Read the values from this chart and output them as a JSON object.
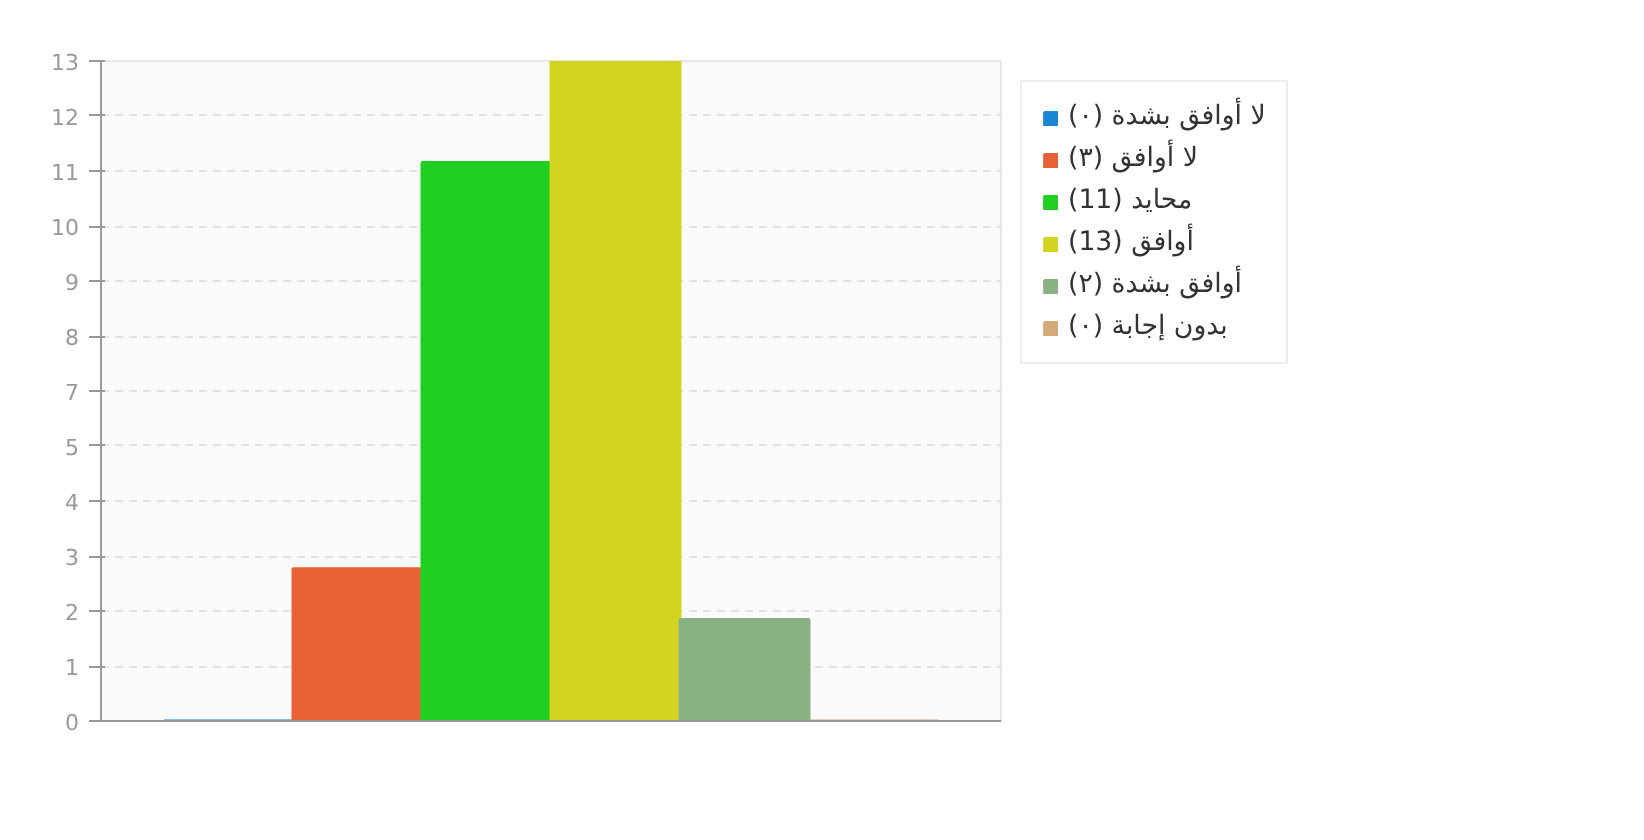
{
  "chart_data": {
    "type": "bar",
    "categories": [
      null
    ],
    "series": [
      {
        "name": "لا أوافق بشدة (٠)",
        "color": "#1a86d6",
        "values": [
          0
        ]
      },
      {
        "name": "لا أوافق (٣)",
        "color": "#e86035",
        "values": [
          3
        ]
      },
      {
        "name": "محايد (11)",
        "color": "#20cf22",
        "values": [
          11
        ]
      },
      {
        "name": "أوافق (13)",
        "color": "#d3d41e",
        "values": [
          13
        ]
      },
      {
        "name": "أوافق بشدة (٢)",
        "color": "#89b283",
        "values": [
          2
        ]
      },
      {
        "name": "بدون إجابة (٠)",
        "color": "#d4aa7a",
        "values": [
          0
        ]
      }
    ],
    "ylim": [
      0,
      13
    ],
    "yticks": [
      0,
      {
        "value": 1.08,
        "label": "1"
      },
      {
        "value": 2.17,
        "label": "2"
      },
      {
        "value": 3.25,
        "label": "3"
      },
      {
        "value": 4.33,
        "label": "4"
      },
      {
        "value": 5.42,
        "label": "5"
      },
      {
        "value": 6.5,
        "label": "7"
      },
      {
        "value": 7.58,
        "label": "8"
      },
      {
        "value": 8.67,
        "label": "9"
      },
      {
        "value": 9.75,
        "label": "10"
      },
      {
        "value": 10.83,
        "label": "11"
      },
      {
        "value": 11.92,
        "label": "12"
      },
      13
    ],
    "grid": "y",
    "legend": "right"
  }
}
